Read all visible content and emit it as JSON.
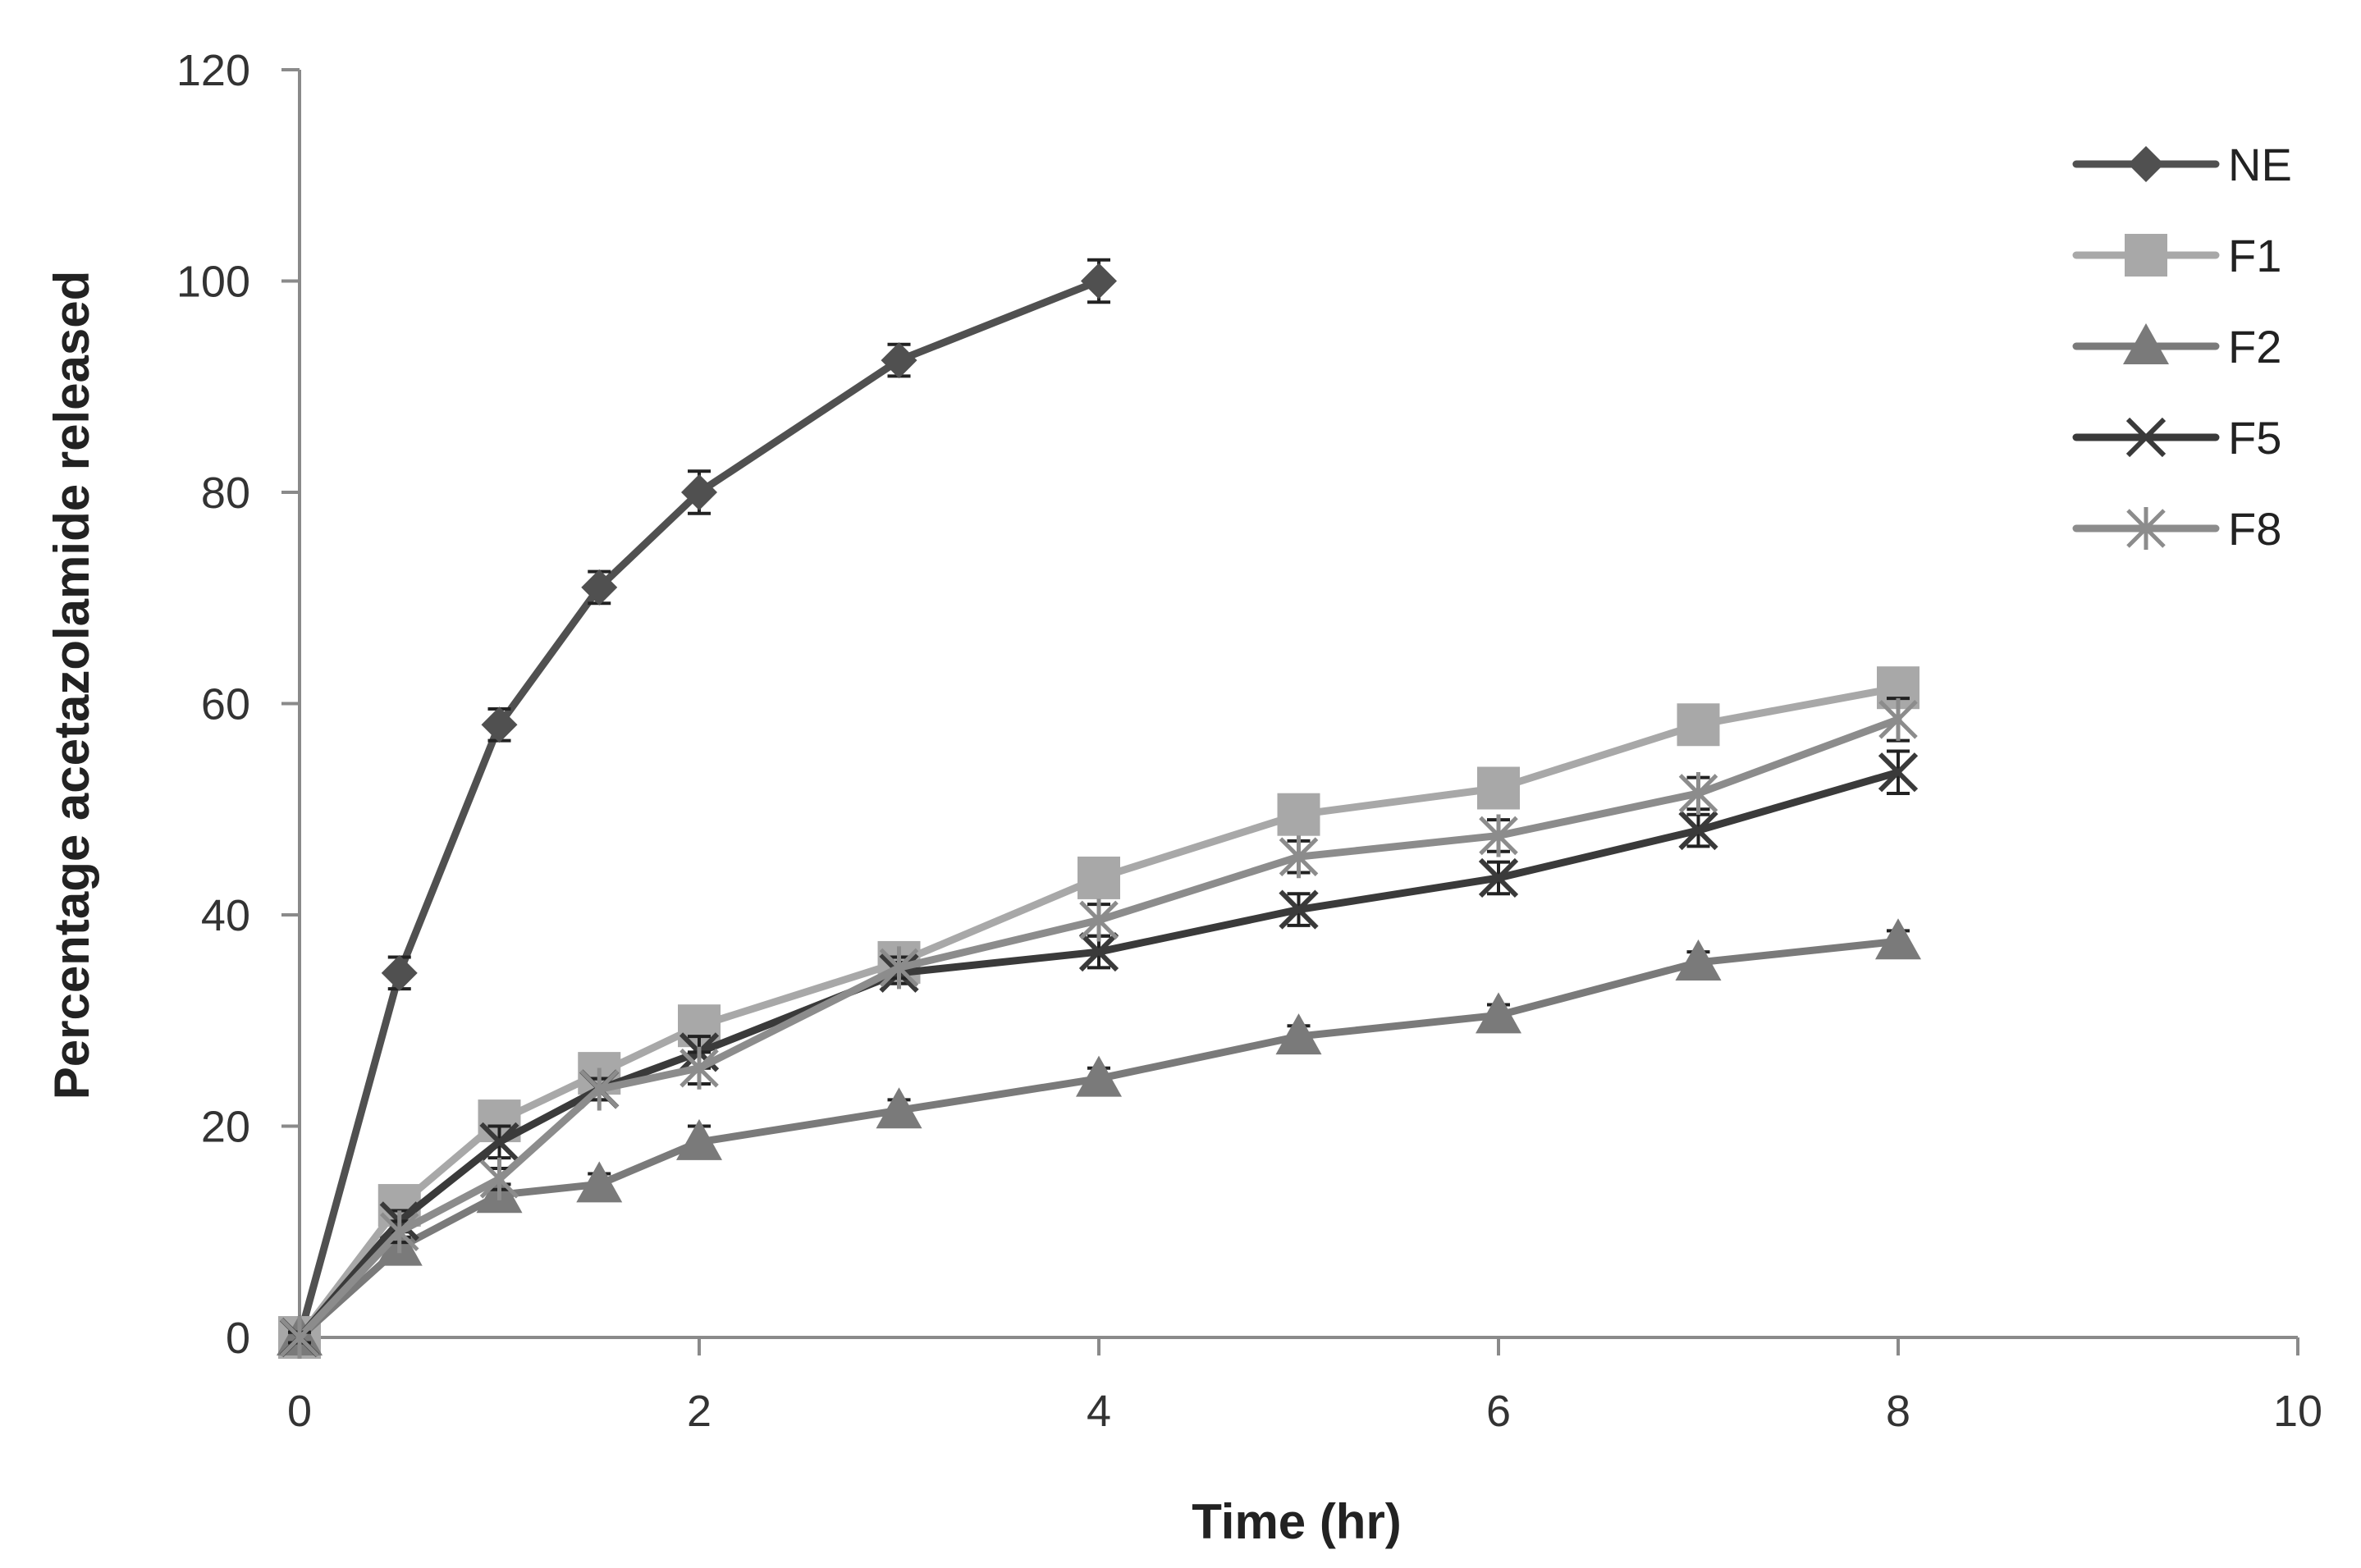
{
  "chart_data": {
    "type": "line",
    "title": "",
    "xlabel": "Time (hr)",
    "ylabel": "Percentage acetazolamide  released",
    "xlim": [
      0,
      10
    ],
    "ylim": [
      0,
      120
    ],
    "xticks": [
      0,
      2,
      4,
      6,
      8,
      10
    ],
    "yticks": [
      0,
      20,
      40,
      60,
      80,
      100,
      120
    ],
    "grid": false,
    "legend_position": "top-right",
    "series": [
      {
        "name": "NE",
        "marker": "diamond",
        "color": "#505050",
        "x": [
          0,
          0.5,
          1,
          1.5,
          2,
          3,
          4
        ],
        "y": [
          0,
          34.5,
          58,
          71,
          80,
          92.5,
          100
        ],
        "err": [
          1,
          1.5,
          1.5,
          1.5,
          2,
          1.5,
          2
        ]
      },
      {
        "name": "F1",
        "marker": "square",
        "color": "#a8a8a8",
        "x": [
          0,
          0.5,
          1,
          1.5,
          2,
          3,
          4,
          5,
          6,
          7,
          8
        ],
        "y": [
          0,
          12.5,
          20.5,
          25,
          29.5,
          35.5,
          43.5,
          49.5,
          52,
          58,
          61.5
        ],
        "err": [
          0.5,
          1,
          1,
          1,
          1,
          1,
          1.5,
          1.5,
          1.5,
          1.5,
          1.5
        ]
      },
      {
        "name": "F2",
        "marker": "triangle",
        "color": "#7a7a7a",
        "x": [
          0,
          0.5,
          1,
          1.5,
          2,
          3,
          4,
          5,
          6,
          7,
          8
        ],
        "y": [
          0,
          8.5,
          13.5,
          14.5,
          18.5,
          21.5,
          24.5,
          28.5,
          30.5,
          35.5,
          37.5
        ],
        "err": [
          0.5,
          1,
          1,
          1,
          1.5,
          1,
          1,
          1,
          1,
          1,
          1
        ]
      },
      {
        "name": "F5",
        "marker": "x",
        "color": "#3a3a3a",
        "x": [
          0,
          0.5,
          1,
          1.5,
          2,
          3,
          4,
          5,
          6,
          7,
          8
        ],
        "y": [
          0,
          11,
          18.5,
          23.5,
          27,
          34.5,
          36.5,
          40.5,
          43.5,
          48,
          53.5
        ],
        "err": [
          0.5,
          1,
          1.5,
          1,
          1.5,
          1,
          1.5,
          1.5,
          1.5,
          1.5,
          2
        ]
      },
      {
        "name": "F8",
        "marker": "star",
        "color": "#8c8c8c",
        "x": [
          0,
          0.5,
          1,
          1.5,
          2,
          3,
          4,
          5,
          6,
          7,
          8
        ],
        "y": [
          0,
          10,
          15,
          23.5,
          25.5,
          35,
          39.5,
          45.5,
          47.5,
          51.5,
          58.5
        ],
        "err": [
          0.5,
          1,
          1,
          1,
          1.5,
          1,
          1.5,
          1.5,
          1.5,
          1.5,
          2
        ]
      }
    ]
  }
}
